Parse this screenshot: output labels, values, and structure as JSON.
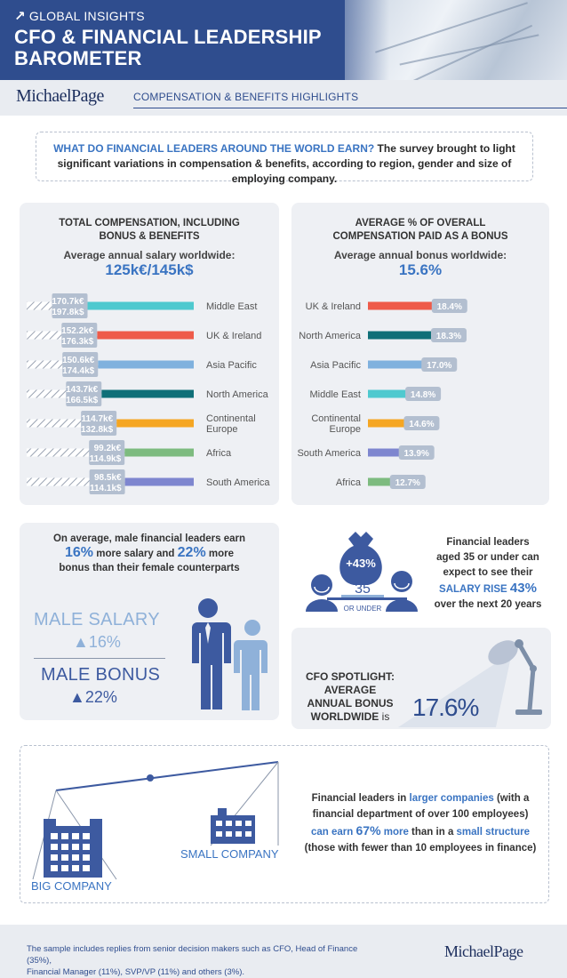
{
  "header": {
    "kicker": "GLOBAL INSIGHTS",
    "kicker_icon": "arrow-up-right-icon",
    "title_line1": "CFO & FINANCIAL LEADERSHIP",
    "title_line2": "BAROMETER",
    "brand": "MichaelPage",
    "section": "COMPENSATION & BENEFITS HIGHLIGHTS"
  },
  "intro": {
    "highlight": "WHAT DO FINANCIAL LEADERS AROUND THE WORLD EARN?",
    "text": " The survey brought to light significant variations in compensation & benefits, according to region, gender and size of employing company."
  },
  "colors": {
    "middle_east": "#4fc9cf",
    "uk_ireland": "#ee5b4a",
    "asia_pacific": "#7fb1de",
    "north_america": "#0f6f78",
    "continental_europe": "#f5a623",
    "africa": "#7dbb7f",
    "south_america": "#7e86cf",
    "accent": "#3a74c2",
    "navy": "#2f4d8e"
  },
  "chart_data": [
    {
      "type": "bar",
      "title": "TOTAL COMPENSATION, INCLUDING BONUS & BENEFITS",
      "title_line1": "TOTAL COMPENSATION, INCLUDING",
      "title_line2": "BONUS & BENEFITS",
      "subtitle": "Average annual salary worldwide:",
      "headline": "125k€/145k$",
      "categories": [
        "Middle East",
        "UK & Ireland",
        "Asia Pacific",
        "North America",
        "Continental Europe",
        "Africa",
        "South America"
      ],
      "category_lines": [
        [
          "Middle East"
        ],
        [
          "UK & Ireland"
        ],
        [
          "Asia Pacific"
        ],
        [
          "North America"
        ],
        [
          "Continental",
          "Europe"
        ],
        [
          "Africa"
        ],
        [
          "South America"
        ]
      ],
      "series": [
        {
          "name": "k€",
          "values": [
            170.7,
            152.2,
            150.6,
            143.7,
            114.7,
            99.2,
            98.5
          ],
          "labels": [
            "170.7k€",
            "152.2k€",
            "150.6k€",
            "143.7k€",
            "114.7k€",
            "99.2k€",
            "98.5k€"
          ]
        },
        {
          "name": "k$",
          "values": [
            197.8,
            176.3,
            174.4,
            166.5,
            132.8,
            114.9,
            114.1
          ],
          "labels": [
            "197.8k$",
            "176.3k$",
            "174.4k$",
            "166.5k$",
            "132.8k$",
            "114.9k$",
            "114.1k$"
          ]
        }
      ],
      "ylim": [
        0,
        200
      ]
    },
    {
      "type": "bar",
      "title": "AVERAGE % OF OVERALL COMPENSATION PAID AS A BONUS",
      "title_line1": "AVERAGE % OF OVERALL",
      "title_line2": "COMPENSATION PAID AS A BONUS",
      "subtitle": "Average annual bonus worldwide:",
      "headline": "15.6%",
      "categories": [
        "UK & Ireland",
        "North America",
        "Asia Pacific",
        "Middle East",
        "Continental Europe",
        "South America",
        "Africa"
      ],
      "category_lines": [
        [
          "UK & Ireland"
        ],
        [
          "North America"
        ],
        [
          "Asia Pacific"
        ],
        [
          "Middle East"
        ],
        [
          "Continental",
          "Europe"
        ],
        [
          "South America"
        ],
        [
          "Africa"
        ]
      ],
      "values": [
        18.4,
        18.3,
        17.0,
        14.8,
        14.6,
        13.9,
        12.7
      ],
      "labels": [
        "18.4%",
        "18.3%",
        "17.0%",
        "14.8%",
        "14.6%",
        "13.9%",
        "12.7%"
      ],
      "ylim": [
        0,
        20
      ]
    }
  ],
  "gender": {
    "line1": "On average, male financial leaders earn",
    "salary_pct": "16%",
    "mid1": " more salary and ",
    "bonus_pct": "22%",
    "mid2": " more",
    "line3": "bonus than their female counterparts",
    "male_salary_label": "MALE SALARY",
    "male_salary_value": "▲16%",
    "male_bonus_label": "MALE BONUS",
    "male_bonus_value": "▲22%"
  },
  "young": {
    "money_bag_text": "+43%",
    "age": "35",
    "or_under": "OR UNDER",
    "line1": "Financial leaders",
    "line2": "aged 35 or under can",
    "line3": "expect to see their",
    "salary_rise": "SALARY RISE",
    "rise_pct": "43%",
    "line5": "over the next 20 years"
  },
  "cfo": {
    "line1": "CFO SPOTLIGHT:",
    "line2": "AVERAGE",
    "line3": "ANNUAL BONUS",
    "line4": "WORLDWIDE",
    "is": "is",
    "value": "17.6%"
  },
  "company": {
    "big_label": "BIG COMPANY",
    "small_label": "SMALL COMPANY",
    "t1": "Financial leaders in ",
    "t1_hl": "larger companies",
    "t2": " (with a",
    "t3": "financial department of over 100 employees)",
    "t4_hl": "can earn ",
    "t4_big": "67%",
    "t4_hl2": " more",
    "t5": " than in a ",
    "t5_hl": "small structure",
    "t6": "(those with fewer than 10 employees in finance)"
  },
  "footer": {
    "line1": "The sample includes replies from senior decision makers such as CFO, Head of Finance (35%),",
    "line2": "Financial Manager (11%), SVP/VP (11%) and others (3%).",
    "brand": "MichaelPage"
  }
}
